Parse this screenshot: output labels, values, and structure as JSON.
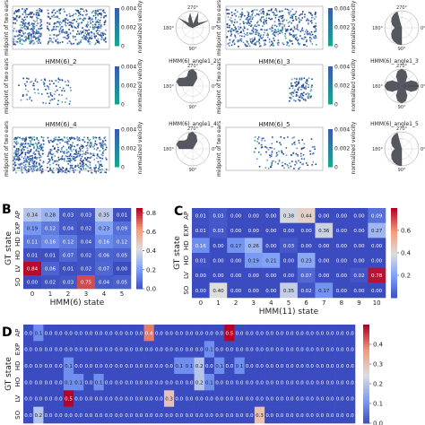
{
  "figure": {
    "panels": [
      "B",
      "C",
      "D"
    ]
  },
  "panel_a": {
    "left_titles": [
      "HMM(6)_2",
      "HMM(6)_4"
    ],
    "left_polar_titles": [
      "HMM(6)_angle1_2",
      "HMM(6)_angle1_4"
    ],
    "right_titles": [
      "HMM(6)_3",
      "HMM(6)_5"
    ],
    "right_polar_titles": [
      "HMM(6)_angle1_3",
      "HMM(6)_angle1_5"
    ],
    "ylabel": "midpoint of two ears",
    "colorbar_label": "normalized velocity",
    "colorbar_ticks": [
      "0.004",
      "0.002",
      "0"
    ],
    "polar_angles": [
      "270°",
      "90°",
      "180°",
      "0°",
      "45°",
      "135°",
      "225°",
      "315°"
    ]
  },
  "panel_b": {
    "label": "B",
    "ylabel": "GT state",
    "xlabel": "HMM(6) state",
    "rows": [
      "AP",
      "EXP",
      "HD",
      "HO",
      "LV",
      "SO"
    ],
    "cols": [
      "0",
      "1",
      "2",
      "3",
      "4",
      "5"
    ],
    "colorbar_ticks": [
      "0.8",
      "0.6",
      "0.4",
      "0.2",
      "0.0"
    ],
    "cmax": 0.85
  },
  "panel_c": {
    "label": "C",
    "ylabel": "GT state",
    "xlabel": "HMM(11) state",
    "rows": [
      "AP",
      "EXP",
      "HD",
      "HO",
      "LV",
      "SO"
    ],
    "cols": [
      "0",
      "1",
      "2",
      "3",
      "4",
      "5",
      "6",
      "7",
      "8",
      "9",
      "10"
    ],
    "colorbar_ticks": [
      "0.6",
      "0.4",
      "0.2"
    ],
    "cmax": 0.8
  },
  "panel_d": {
    "label": "D",
    "ylabel": "GT state",
    "rows": [
      "AP",
      "EXP",
      "HD",
      "HO",
      "LV",
      "SO"
    ],
    "colorbar_ticks": [
      "0.4",
      "0.3",
      "0.2",
      "0.1",
      "0.0"
    ],
    "cmax": 0.5
  },
  "chart_data": [
    {
      "type": "heatmap",
      "title": "",
      "xlabel": "HMM(6) state",
      "ylabel": "GT state",
      "x": [
        "0",
        "1",
        "2",
        "3",
        "4",
        "5"
      ],
      "y": [
        "AP",
        "EXP",
        "HD",
        "HO",
        "LV",
        "SO"
      ],
      "values": [
        [
          0.34,
          0.28,
          0.03,
          0.03,
          0.35,
          0.01
        ],
        [
          0.19,
          0.12,
          0.04,
          0.02,
          0.23,
          0.09
        ],
        [
          0.11,
          0.16,
          0.12,
          0.04,
          0.16,
          0.12
        ],
        [
          0.01,
          0.01,
          0.07,
          0.02,
          0.06,
          0.05
        ],
        [
          0.84,
          0.06,
          0.01,
          0.02,
          0.07,
          0.0
        ],
        [
          0.0,
          0.02,
          0.03,
          0.75,
          0.04,
          0.05
        ]
      ],
      "colorbar_range": [
        0,
        0.85
      ]
    },
    {
      "type": "heatmap",
      "title": "",
      "xlabel": "HMM(11) state",
      "ylabel": "GT state",
      "x": [
        "0",
        "1",
        "2",
        "3",
        "4",
        "5",
        "6",
        "7",
        "8",
        "9",
        "10"
      ],
      "y": [
        "AP",
        "EXP",
        "HD",
        "HO",
        "LV",
        "SO"
      ],
      "values": [
        [
          0.01,
          0.03,
          0.0,
          0.0,
          0.0,
          0.38,
          0.44,
          0.0,
          0.0,
          0.0,
          0.09
        ],
        [
          0.01,
          0.03,
          0.0,
          0.0,
          0.0,
          0.0,
          0.0,
          0.36,
          0.0,
          0.0,
          0.27
        ],
        [
          0.16,
          0.0,
          0.17,
          0.26,
          0.0,
          0.03,
          0.0,
          0.0,
          0.0,
          0.0,
          0.0
        ],
        [
          0.01,
          0.0,
          0.0,
          0.19,
          0.21,
          0.0,
          0.23,
          0.0,
          0.0,
          0.0,
          0.0
        ],
        [
          0.0,
          0.0,
          0.0,
          0.0,
          0.0,
          0.0,
          0.07,
          0.0,
          0.0,
          0.02,
          0.78
        ],
        [
          0.0,
          0.4,
          0.0,
          0.0,
          0.0,
          0.35,
          0.02,
          0.17,
          0.0,
          0.0,
          0.0
        ]
      ],
      "colorbar_range": [
        0,
        0.8
      ]
    },
    {
      "type": "heatmap",
      "title": "",
      "xlabel": "",
      "ylabel": "GT state",
      "y": [
        "AP",
        "EXP",
        "HD",
        "HO",
        "LV",
        "SO"
      ],
      "values": [
        [
          0.0,
          0.1,
          0.0,
          0.0,
          0.0,
          0.0,
          0.0,
          0.0,
          0.0,
          0.0,
          0.0,
          0.0,
          0.4,
          0.0,
          0.0,
          0.0,
          0.0,
          0.0,
          0.0,
          0.0,
          0.5,
          0.0,
          0.0,
          0.0,
          0.0,
          0.0,
          0.0,
          0.0,
          0.0,
          0.0,
          0.0,
          0.0,
          0.0
        ],
        [
          0.0,
          0.0,
          0.0,
          0.0,
          0.0,
          0.0,
          0.0,
          0.0,
          0.0,
          0.0,
          0.0,
          0.0,
          0.0,
          0.0,
          0.0,
          0.0,
          0.0,
          0.0,
          0.1,
          0.0,
          0.0,
          0.0,
          0.0,
          0.0,
          0.0,
          0.0,
          0.0,
          0.0,
          0.0,
          0.0,
          0.0,
          0.0,
          0.0
        ],
        [
          0.0,
          0.0,
          0.0,
          0.0,
          0.1,
          0.0,
          0.0,
          0.0,
          0.0,
          0.0,
          0.0,
          0.0,
          0.0,
          0.0,
          0.0,
          0.1,
          0.1,
          0.2,
          0.0,
          0.1,
          0.0,
          0.1,
          0.0,
          0.0,
          0.0,
          0.0,
          0.0,
          0.0,
          0.0,
          0.0,
          0.0,
          0.0,
          0.0
        ],
        [
          0.0,
          0.0,
          0.0,
          0.0,
          0.1,
          0.1,
          0.0,
          0.1,
          0.0,
          0.0,
          0.0,
          0.0,
          0.0,
          0.0,
          0.0,
          0.0,
          0.0,
          0.2,
          0.1,
          0.0,
          0.0,
          0.0,
          0.0,
          0.0,
          0.0,
          0.0,
          0.0,
          0.0,
          0.0,
          0.0,
          0.0,
          0.0,
          0.0
        ],
        [
          0.0,
          0.0,
          0.0,
          0.0,
          0.5,
          0.0,
          0.0,
          0.0,
          0.0,
          0.0,
          0.0,
          0.0,
          0.0,
          0.0,
          0.3,
          0.0,
          0.0,
          0.0,
          0.0,
          0.0,
          0.0,
          0.0,
          0.0,
          0.0,
          0.0,
          0.0,
          0.0,
          0.0,
          0.0,
          0.0,
          0.0,
          0.0,
          0.0
        ],
        [
          0.0,
          0.2,
          0.0,
          0.0,
          0.0,
          0.0,
          0.0,
          0.0,
          0.0,
          0.0,
          0.0,
          0.0,
          0.0,
          0.0,
          0.0,
          0.0,
          0.0,
          0.0,
          0.0,
          0.0,
          0.0,
          0.0,
          0.0,
          0.3,
          0.0,
          0.0,
          0.0,
          0.0,
          0.0,
          0.0,
          0.0,
          0.0,
          0.0
        ]
      ],
      "colorbar_range": [
        0,
        0.5
      ]
    }
  ]
}
